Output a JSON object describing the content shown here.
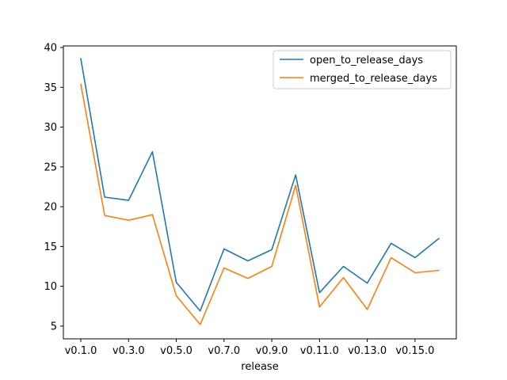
{
  "chart_data": {
    "type": "line",
    "title": "",
    "xlabel": "release",
    "ylabel": "",
    "x": [
      "v0.1.0",
      "v0.2.0",
      "v0.3.0",
      "v0.4.0",
      "v0.5.0",
      "v0.6.0",
      "v0.7.0",
      "v0.8.0",
      "v0.9.0",
      "v0.10.0",
      "v0.11.0",
      "v0.12.0",
      "v0.13.0",
      "v0.14.0",
      "v0.15.0",
      "v0.16.0"
    ],
    "xtick_labels": [
      "v0.1.0",
      "v0.3.0",
      "v0.5.0",
      "v0.7.0",
      "v0.9.0",
      "v0.11.0",
      "v0.13.0",
      "v0.15.0"
    ],
    "ylim": [
      3.4,
      40.2
    ],
    "yticks": [
      5,
      10,
      15,
      20,
      25,
      30,
      35,
      40
    ],
    "grid": false,
    "legend_position": "top-right",
    "series": [
      {
        "name": "open_to_release_days",
        "color": "#1f77b4",
        "values": [
          38.6,
          21.2,
          20.8,
          26.9,
          10.5,
          6.9,
          14.7,
          13.2,
          14.6,
          24.0,
          9.2,
          12.5,
          10.4,
          15.4,
          13.6,
          16.0
        ]
      },
      {
        "name": "merged_to_release_days",
        "color": "#ff7f0e",
        "values": [
          35.4,
          18.9,
          18.3,
          19.0,
          8.8,
          5.2,
          12.3,
          11.0,
          12.5,
          22.7,
          7.4,
          11.1,
          7.1,
          13.6,
          11.7,
          12.0
        ]
      }
    ]
  }
}
